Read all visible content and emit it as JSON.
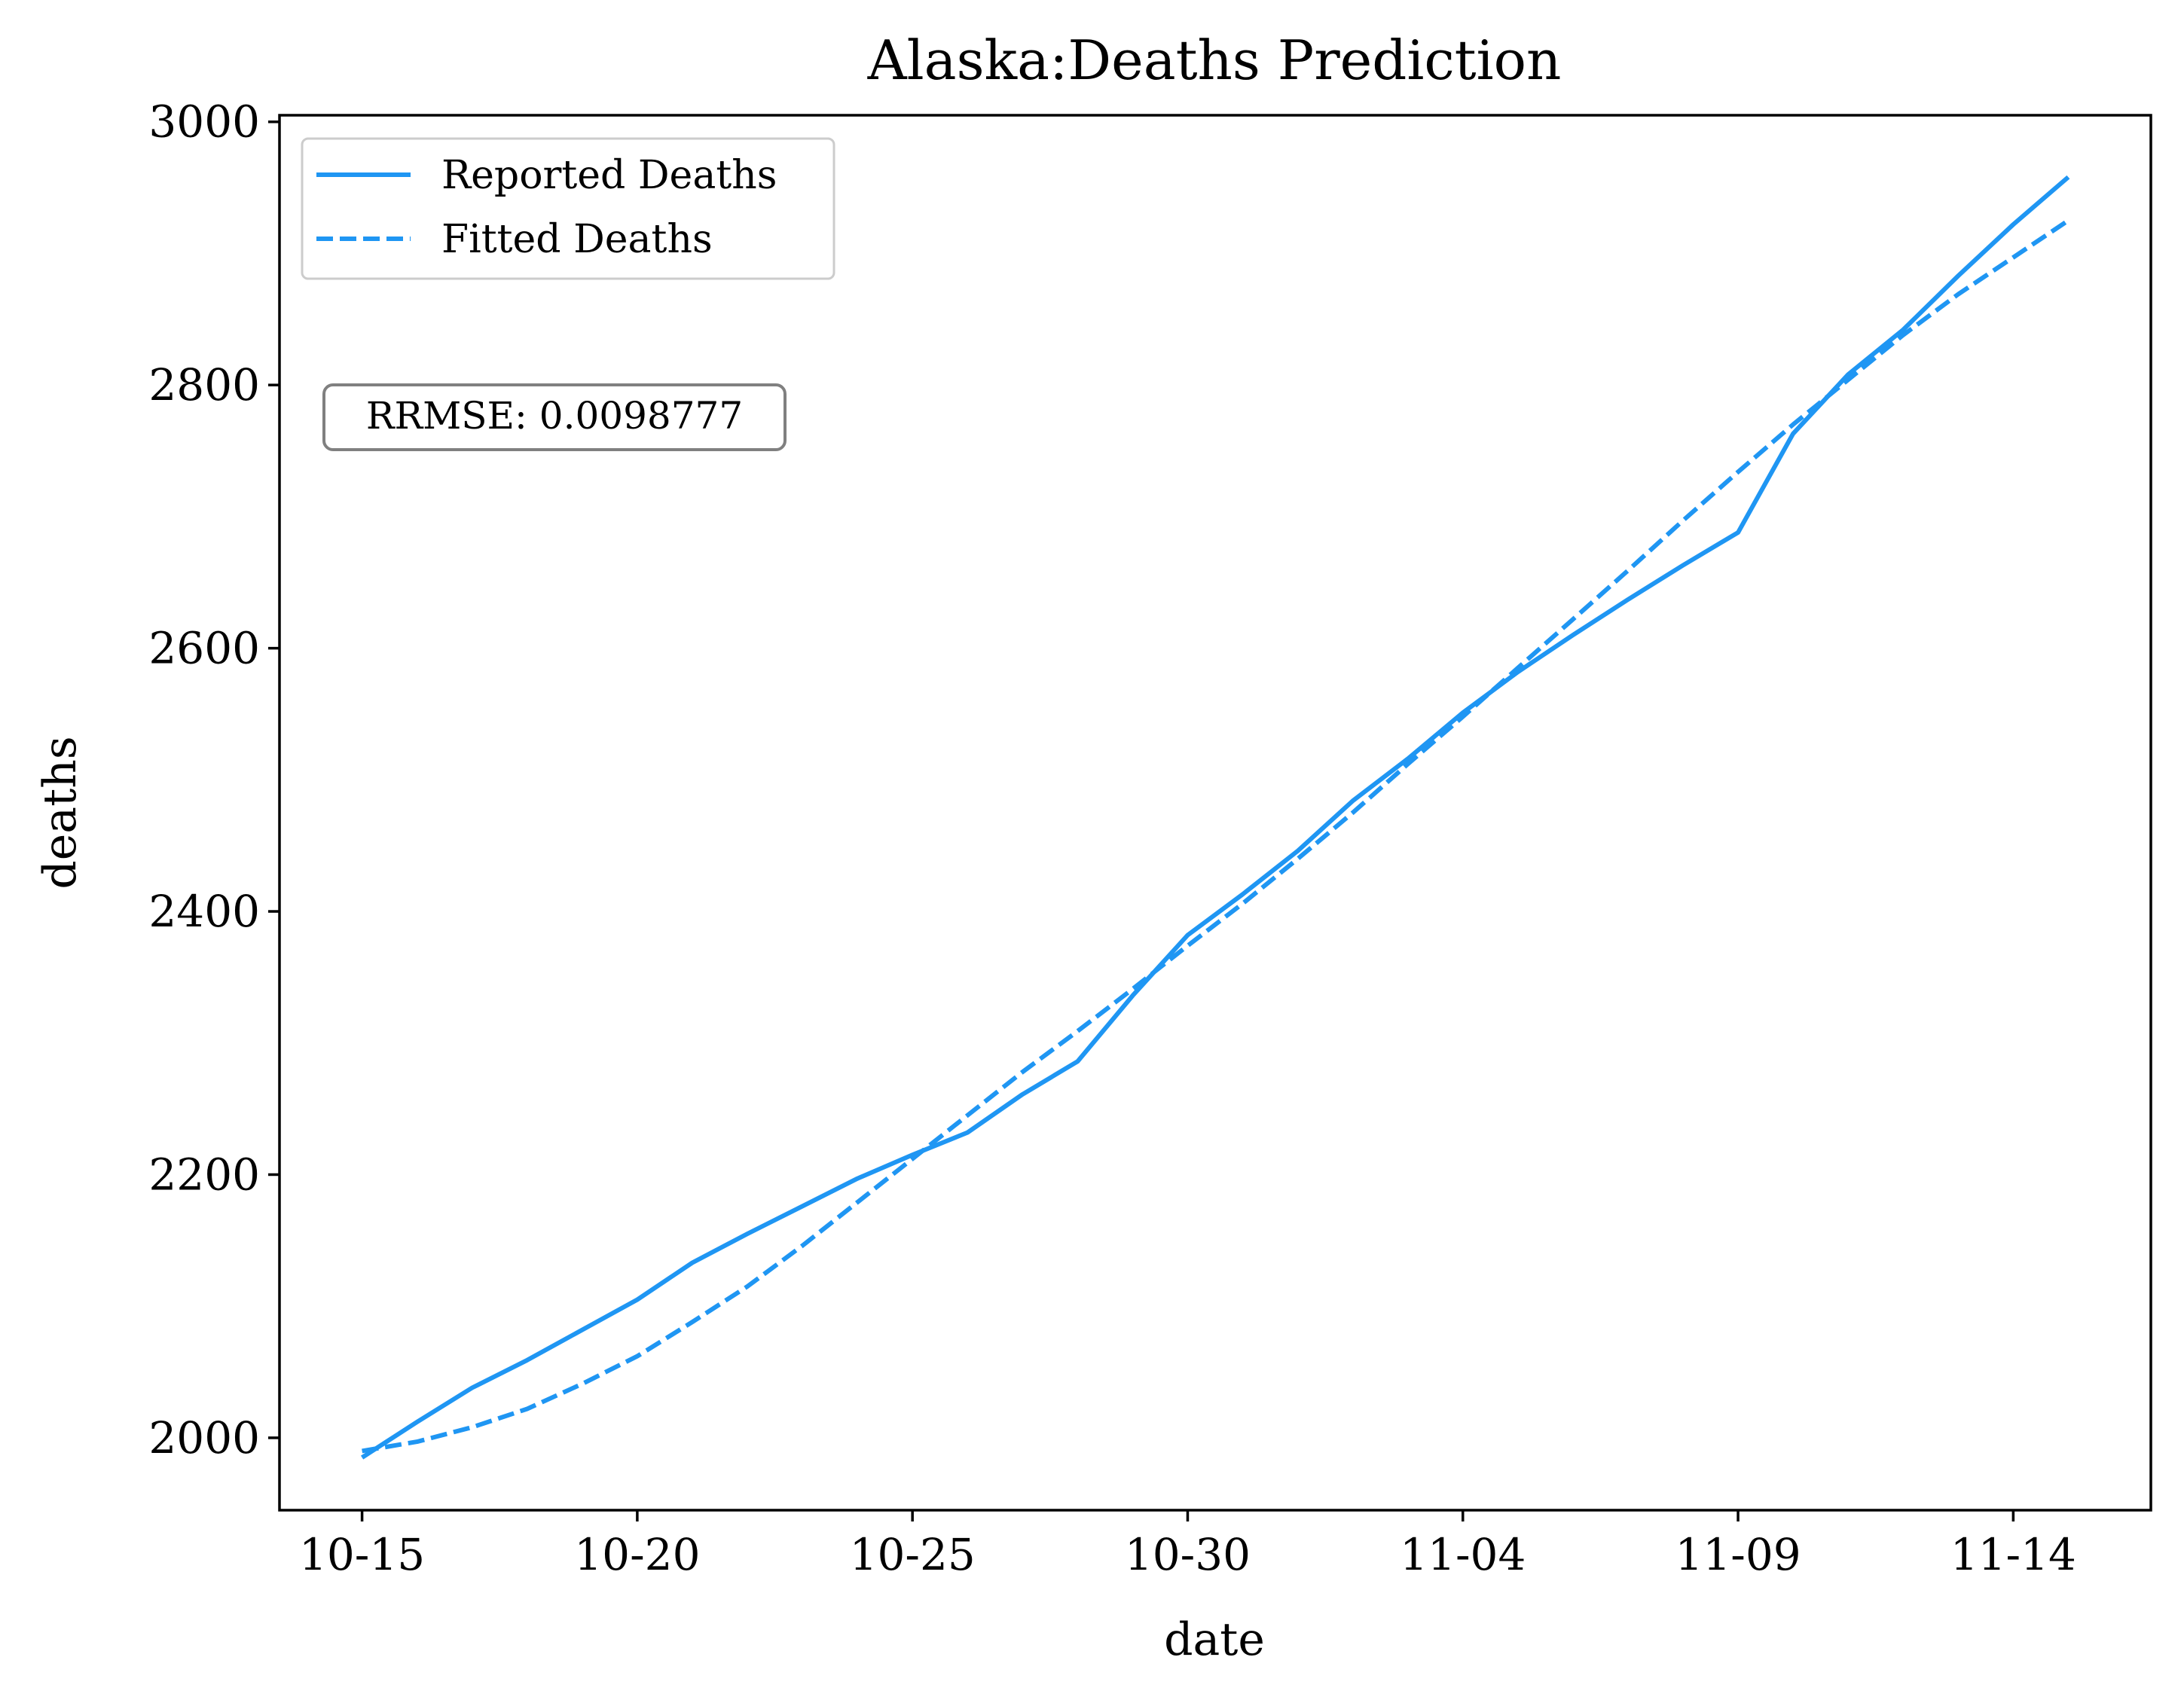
{
  "chart_data": {
    "type": "line",
    "title": "Alaska:Deaths Prediction",
    "xlabel": "date",
    "ylabel": "deaths",
    "x_range": [
      -1.5,
      32.5
    ],
    "ylim": [
      1945,
      3005
    ],
    "grid": false,
    "legend_position": "top-left",
    "x_ticks": [
      {
        "label": "10-15",
        "x": 0
      },
      {
        "label": "10-20",
        "x": 5
      },
      {
        "label": "10-25",
        "x": 10
      },
      {
        "label": "10-30",
        "x": 15
      },
      {
        "label": "11-04",
        "x": 20
      },
      {
        "label": "11-09",
        "x": 25
      },
      {
        "label": "11-14",
        "x": 30
      }
    ],
    "y_ticks": [
      2000,
      2200,
      2400,
      2600,
      2800,
      3000
    ],
    "annotation": "RRMSE: 0.0098777",
    "series": [
      {
        "name": "Reported Deaths",
        "style": "solid",
        "color": "#1f96f3",
        "points": [
          [
            0,
            1985
          ],
          [
            1,
            2012
          ],
          [
            2,
            2038
          ],
          [
            3,
            2059
          ],
          [
            4,
            2082
          ],
          [
            5,
            2105
          ],
          [
            6,
            2133
          ],
          [
            7,
            2155
          ],
          [
            8,
            2176
          ],
          [
            9,
            2197
          ],
          [
            10,
            2215
          ],
          [
            11,
            2232
          ],
          [
            12,
            2261
          ],
          [
            13,
            2286
          ],
          [
            14,
            2336
          ],
          [
            15,
            2382
          ],
          [
            16,
            2413
          ],
          [
            17,
            2446
          ],
          [
            18,
            2484
          ],
          [
            19,
            2516
          ],
          [
            20,
            2551
          ],
          [
            21,
            2582
          ],
          [
            22,
            2610
          ],
          [
            23,
            2637
          ],
          [
            24,
            2663
          ],
          [
            25,
            2688
          ],
          [
            26,
            2763
          ],
          [
            27,
            2808
          ],
          [
            28,
            2842
          ],
          [
            29,
            2883
          ],
          [
            30,
            2922
          ],
          [
            31,
            2958
          ]
        ]
      },
      {
        "name": "Fitted Deaths",
        "style": "dashed",
        "color": "#1f96f3",
        "points": [
          [
            0,
            1990
          ],
          [
            1,
            1997
          ],
          [
            2,
            2008
          ],
          [
            3,
            2022
          ],
          [
            4,
            2041
          ],
          [
            5,
            2062
          ],
          [
            6,
            2088
          ],
          [
            7,
            2115
          ],
          [
            8,
            2146
          ],
          [
            9,
            2179
          ],
          [
            10,
            2212
          ],
          [
            11,
            2245
          ],
          [
            12,
            2278
          ],
          [
            13,
            2309
          ],
          [
            14,
            2341
          ],
          [
            15,
            2374
          ],
          [
            16,
            2406
          ],
          [
            17,
            2440
          ],
          [
            18,
            2475
          ],
          [
            19,
            2512
          ],
          [
            20,
            2548
          ],
          [
            21,
            2585
          ],
          [
            22,
            2622
          ],
          [
            23,
            2659
          ],
          [
            24,
            2697
          ],
          [
            25,
            2734
          ],
          [
            26,
            2770
          ],
          [
            27,
            2804
          ],
          [
            28,
            2838
          ],
          [
            29,
            2869
          ],
          [
            30,
            2897
          ],
          [
            31,
            2925
          ]
        ]
      }
    ]
  }
}
